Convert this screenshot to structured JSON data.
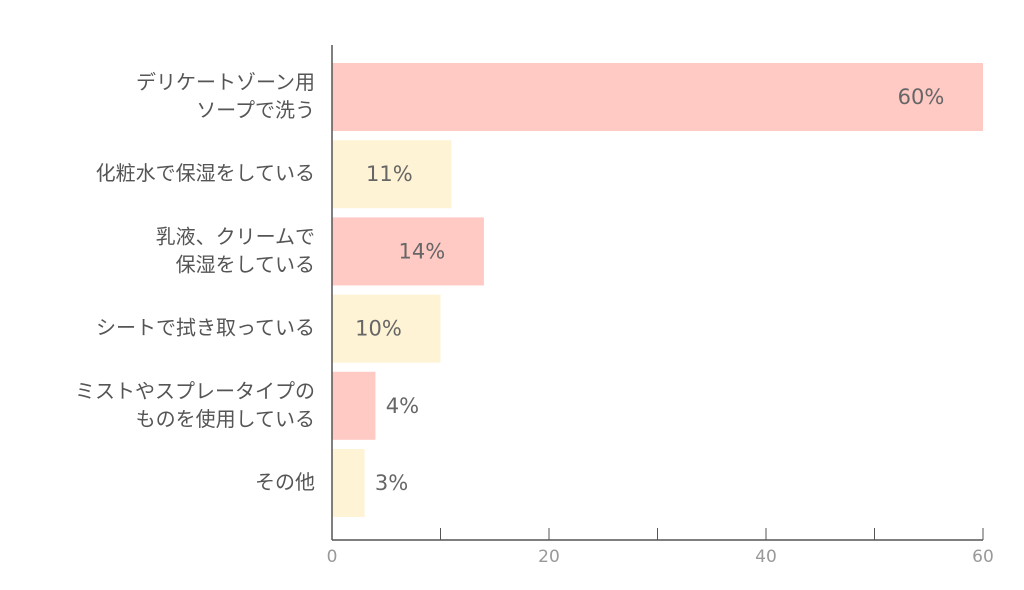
{
  "chart_data": {
    "type": "barh",
    "categories": [
      [
        "デリケートゾーン用",
        "ソープで洗う"
      ],
      [
        "化粧水で保湿をしている"
      ],
      [
        "乳液、クリームで",
        "保湿をしている"
      ],
      [
        "シートで拭き取っている"
      ],
      [
        "ミストやスプレータイプの",
        "ものを使用している"
      ],
      [
        "その他"
      ]
    ],
    "values": [
      60,
      11,
      14,
      10,
      4,
      3
    ],
    "value_labels": [
      "60%",
      "11%",
      "14%",
      "10%",
      "4%",
      "3%"
    ],
    "colors": [
      "#ffc9c4",
      "#fff3d6",
      "#ffc9c4",
      "#fff3d6",
      "#ffc9c4",
      "#fff3d6"
    ],
    "xlim": [
      0,
      60
    ],
    "xticks": [
      0,
      20,
      40,
      60
    ],
    "minor_xticks": [
      10,
      30,
      50
    ]
  }
}
